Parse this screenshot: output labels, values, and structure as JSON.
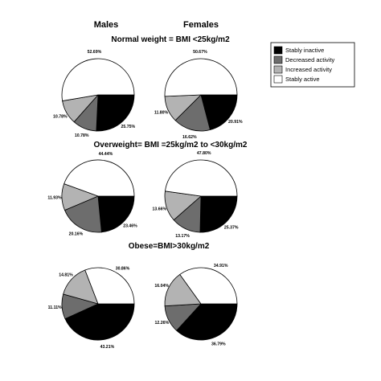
{
  "column_headers": [
    "Males",
    "Females"
  ],
  "legend": [
    {
      "label": "Stably inactive",
      "color": "#000000"
    },
    {
      "label": "Decreased activity",
      "color": "#6d6d6d"
    },
    {
      "label": "Increased activity",
      "color": "#b3b3b3"
    },
    {
      "label": "Stably active",
      "color": "#ffffff"
    }
  ],
  "chart_data": [
    {
      "type": "pie",
      "row_title": "Normal weight = BMI <25kg/m2",
      "column": "Males",
      "categories": [
        "Stably inactive",
        "Decreased activity",
        "Increased activity",
        "Stably active"
      ],
      "values": [
        25.75,
        10.78,
        10.78,
        52.69
      ],
      "labels": [
        "25.75%",
        "10.78%",
        "10.78%",
        "52.69%"
      ]
    },
    {
      "type": "pie",
      "row_title": "Normal weight = BMI <25kg/m2",
      "column": "Females",
      "categories": [
        "Stably inactive",
        "Decreased activity",
        "Increased activity",
        "Stably active"
      ],
      "values": [
        20.91,
        16.62,
        11.8,
        50.67
      ],
      "labels": [
        "20.91%",
        "16.62%",
        "11.80%",
        "50.67%"
      ]
    },
    {
      "type": "pie",
      "row_title": "Overweight= BMI =25kg/m2 to <30kg/m2",
      "column": "Males",
      "categories": [
        "Stably inactive",
        "Decreased activity",
        "Increased activity",
        "Stably active"
      ],
      "values": [
        23.46,
        20.16,
        11.93,
        44.44
      ],
      "labels": [
        "23.46%",
        "20.16%",
        "11.93%",
        "44.44%"
      ]
    },
    {
      "type": "pie",
      "row_title": "Overweight= BMI =25kg/m2 to <30kg/m2",
      "column": "Females",
      "categories": [
        "Stably inactive",
        "Decreased activity",
        "Increased activity",
        "Stably active"
      ],
      "values": [
        25.37,
        13.17,
        13.66,
        47.8
      ],
      "labels": [
        "25.37%",
        "13.17%",
        "13.66%",
        "47.80%"
      ]
    },
    {
      "type": "pie",
      "row_title": "Obese=BMI>30kg/m2",
      "column": "Males",
      "categories": [
        "Stably inactive",
        "Decreased activity",
        "Increased activity",
        "Stably active"
      ],
      "values": [
        43.21,
        11.11,
        14.81,
        30.86
      ],
      "labels": [
        "43.21%",
        "11.11%",
        "14.81%",
        "30.86%"
      ]
    },
    {
      "type": "pie",
      "row_title": "Obese=BMI>30kg/m2",
      "column": "Females",
      "categories": [
        "Stably inactive",
        "Decreased activity",
        "Increased activity",
        "Stably active"
      ],
      "values": [
        36.79,
        12.26,
        16.04,
        34.91
      ],
      "labels": [
        "36.79%",
        "12.26%",
        "16.04%",
        "34.91%"
      ]
    }
  ]
}
